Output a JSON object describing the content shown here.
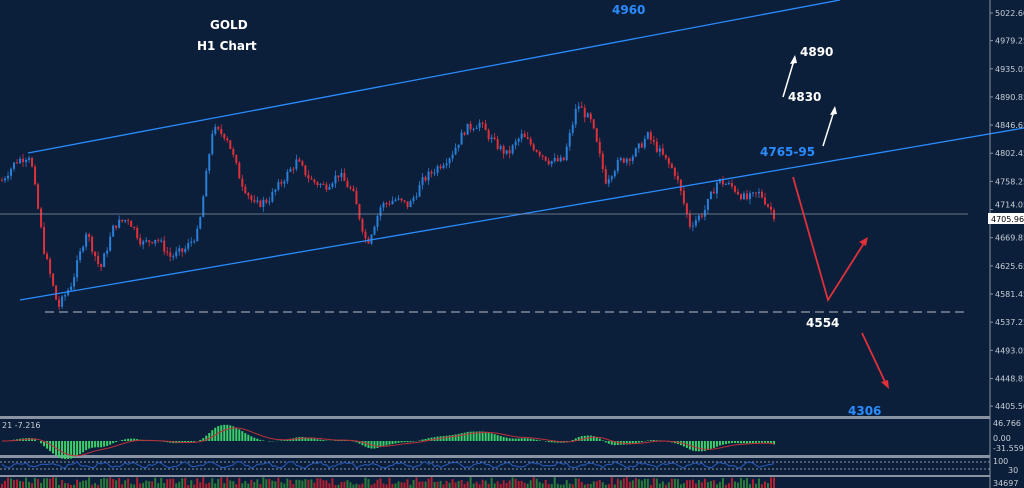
{
  "chart_data": {
    "type": "candlestick",
    "title": "GOLD",
    "subtitle": "H1 Chart",
    "ylim": [
      4380,
      5040
    ],
    "y_ticks": [
      "5022.60",
      "4979.25",
      "4935.05",
      "4890.85",
      "4846.65",
      "4802.45",
      "4758.25",
      "4714.05",
      "4669.85",
      "4625.65",
      "4581.45",
      "4537.25",
      "4493.05",
      "4448.85",
      "4405.50"
    ],
    "current_price": "4705.96",
    "closes": [
      4760,
      4790,
      4800,
      4650,
      4560,
      4600,
      4680,
      4620,
      4690,
      4700,
      4660,
      4670,
      4640,
      4650,
      4680,
      4840,
      4830,
      4760,
      4720,
      4730,
      4760,
      4790,
      4760,
      4750,
      4770,
      4740,
      4660,
      4720,
      4730,
      4720,
      4760,
      4780,
      4800,
      4840,
      4850,
      4820,
      4800,
      4830,
      4810,
      4790,
      4790,
      4880,
      4850,
      4760,
      4790,
      4800,
      4830,
      4800,
      4770,
      4690,
      4710,
      4760,
      4750,
      4730,
      4740,
      4706
    ],
    "levels": {
      "channel_top": "4960",
      "target_1": "4890",
      "target_2": "4830",
      "resistance": "4765-95",
      "support": "4554",
      "target_down": "4306"
    },
    "support_price": 4554,
    "macd": {
      "max": "46.766",
      "zero": "0.00",
      "min": "-31.559",
      "readout": "21 -7.216"
    },
    "rsi": {
      "upper": "100",
      "lower": "30"
    },
    "volume": {
      "max": "34697",
      "min": "0"
    },
    "colors": {
      "bg": "#0b1f3a",
      "bull": "#2a7fd8",
      "bear": "#e0303a",
      "channel": "#2a8cff",
      "macd": "#3ccf6a",
      "signal": "#c0303a"
    }
  }
}
